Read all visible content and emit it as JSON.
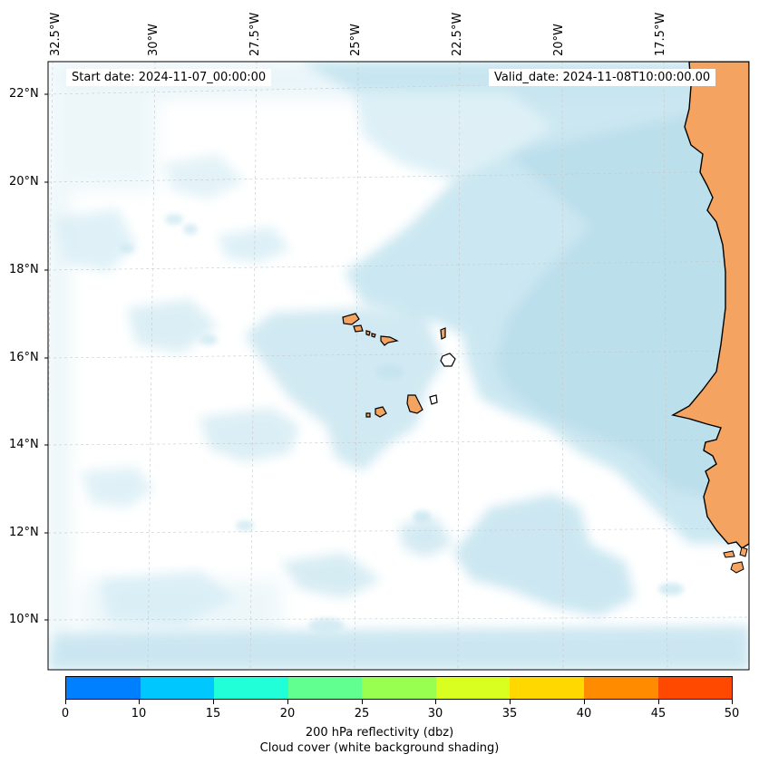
{
  "map": {
    "start_date": "Start date: 2024-11-07_00:00:00",
    "valid_date": "Valid_date: 2024-11-08T10:00:00.00",
    "lon_labels": [
      "32.5°W",
      "30°W",
      "27.5°W",
      "25°W",
      "22.5°W",
      "20°W",
      "17.5°W"
    ],
    "lat_labels": [
      "22°N",
      "20°N",
      "18°N",
      "16°N",
      "14°N",
      "12°N",
      "10°N"
    ],
    "land_color": "#f4a460",
    "cloud_color": "#add8e6",
    "gridlines": true
  },
  "colorbar": {
    "ticks": [
      "0",
      "10",
      "15",
      "20",
      "25",
      "30",
      "35",
      "40",
      "45",
      "50"
    ],
    "colors": [
      "#0080ff",
      "#00c8ff",
      "#20ffd8",
      "#60ff90",
      "#98ff50",
      "#d8ff20",
      "#ffd800",
      "#ff8c00",
      "#ff4800"
    ],
    "label": "200 hPa reflectivity (dbz)",
    "sublabel": "Cloud cover (white background shading)"
  }
}
